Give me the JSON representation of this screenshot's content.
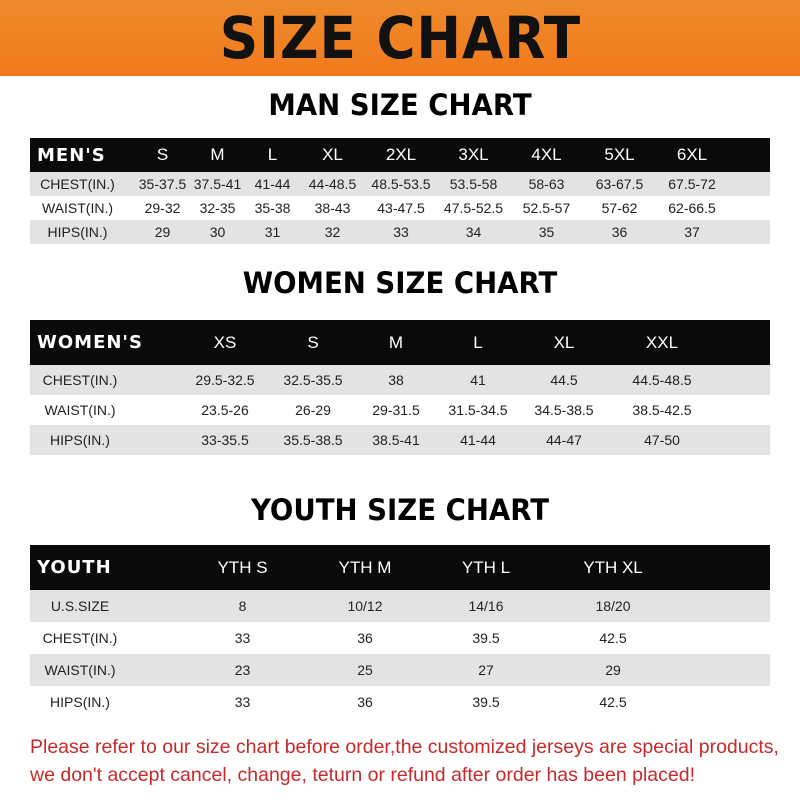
{
  "banner": {
    "title": "SIZE CHART"
  },
  "men": {
    "title": "MAN SIZE CHART",
    "header_label": "MEN'S",
    "sizes": [
      "S",
      "M",
      "L",
      "XL",
      "2XL",
      "3XL",
      "4XL",
      "5XL",
      "6XL"
    ],
    "rows": [
      {
        "label": "CHEST(IN.)",
        "values": [
          "35-37.5",
          "37.5-41",
          "41-44",
          "44-48.5",
          "48.5-53.5",
          "53.5-58",
          "58-63",
          "63-67.5",
          "67.5-72"
        ]
      },
      {
        "label": "WAIST(IN.)",
        "values": [
          "29-32",
          "32-35",
          "35-38",
          "38-43",
          "43-47.5",
          "47.5-52.5",
          "52.5-57",
          "57-62",
          "62-66.5"
        ]
      },
      {
        "label": "HIPS(IN.)",
        "values": [
          "29",
          "30",
          "31",
          "32",
          "33",
          "34",
          "35",
          "36",
          "37"
        ]
      }
    ]
  },
  "women": {
    "title": "WOMEN SIZE CHART",
    "header_label": "WOMEN'S",
    "sizes": [
      "XS",
      "S",
      "M",
      "L",
      "XL",
      "XXL"
    ],
    "rows": [
      {
        "label": "CHEST(IN.)",
        "values": [
          "29.5-32.5",
          "32.5-35.5",
          "38",
          "41",
          "44.5",
          "44.5-48.5"
        ]
      },
      {
        "label": "WAIST(IN.)",
        "values": [
          "23.5-26",
          "26-29",
          "29-31.5",
          "31.5-34.5",
          "34.5-38.5",
          "38.5-42.5"
        ]
      },
      {
        "label": "HIPS(IN.)",
        "values": [
          "33-35.5",
          "35.5-38.5",
          "38.5-41",
          "41-44",
          "44-47",
          "47-50"
        ]
      }
    ]
  },
  "youth": {
    "title": "YOUTH SIZE CHART",
    "header_label": "YOUTH",
    "sizes": [
      "YTH S",
      "YTH M",
      "YTH L",
      "YTH XL"
    ],
    "rows": [
      {
        "label": "U.S.SIZE",
        "values": [
          "8",
          "10/12",
          "14/16",
          "18/20"
        ]
      },
      {
        "label": "CHEST(IN.)",
        "values": [
          "33",
          "36",
          "39.5",
          "42.5"
        ]
      },
      {
        "label": "WAIST(IN.)",
        "values": [
          "23",
          "25",
          "27",
          "29"
        ]
      },
      {
        "label": "HIPS(IN.)",
        "values": [
          "33",
          "36",
          "39.5",
          "42.5"
        ]
      }
    ]
  },
  "notice": {
    "line1": "Please refer to our size chart before order,the customized jerseys are special products,",
    "line2": "we don't accept cancel, change, teturn or refund after order has been placed!"
  },
  "colors": {
    "banner": "#f07f24",
    "header_row": "#0a0a0a",
    "stripe": "#e3e3e3",
    "notice": "#c62a2a"
  }
}
